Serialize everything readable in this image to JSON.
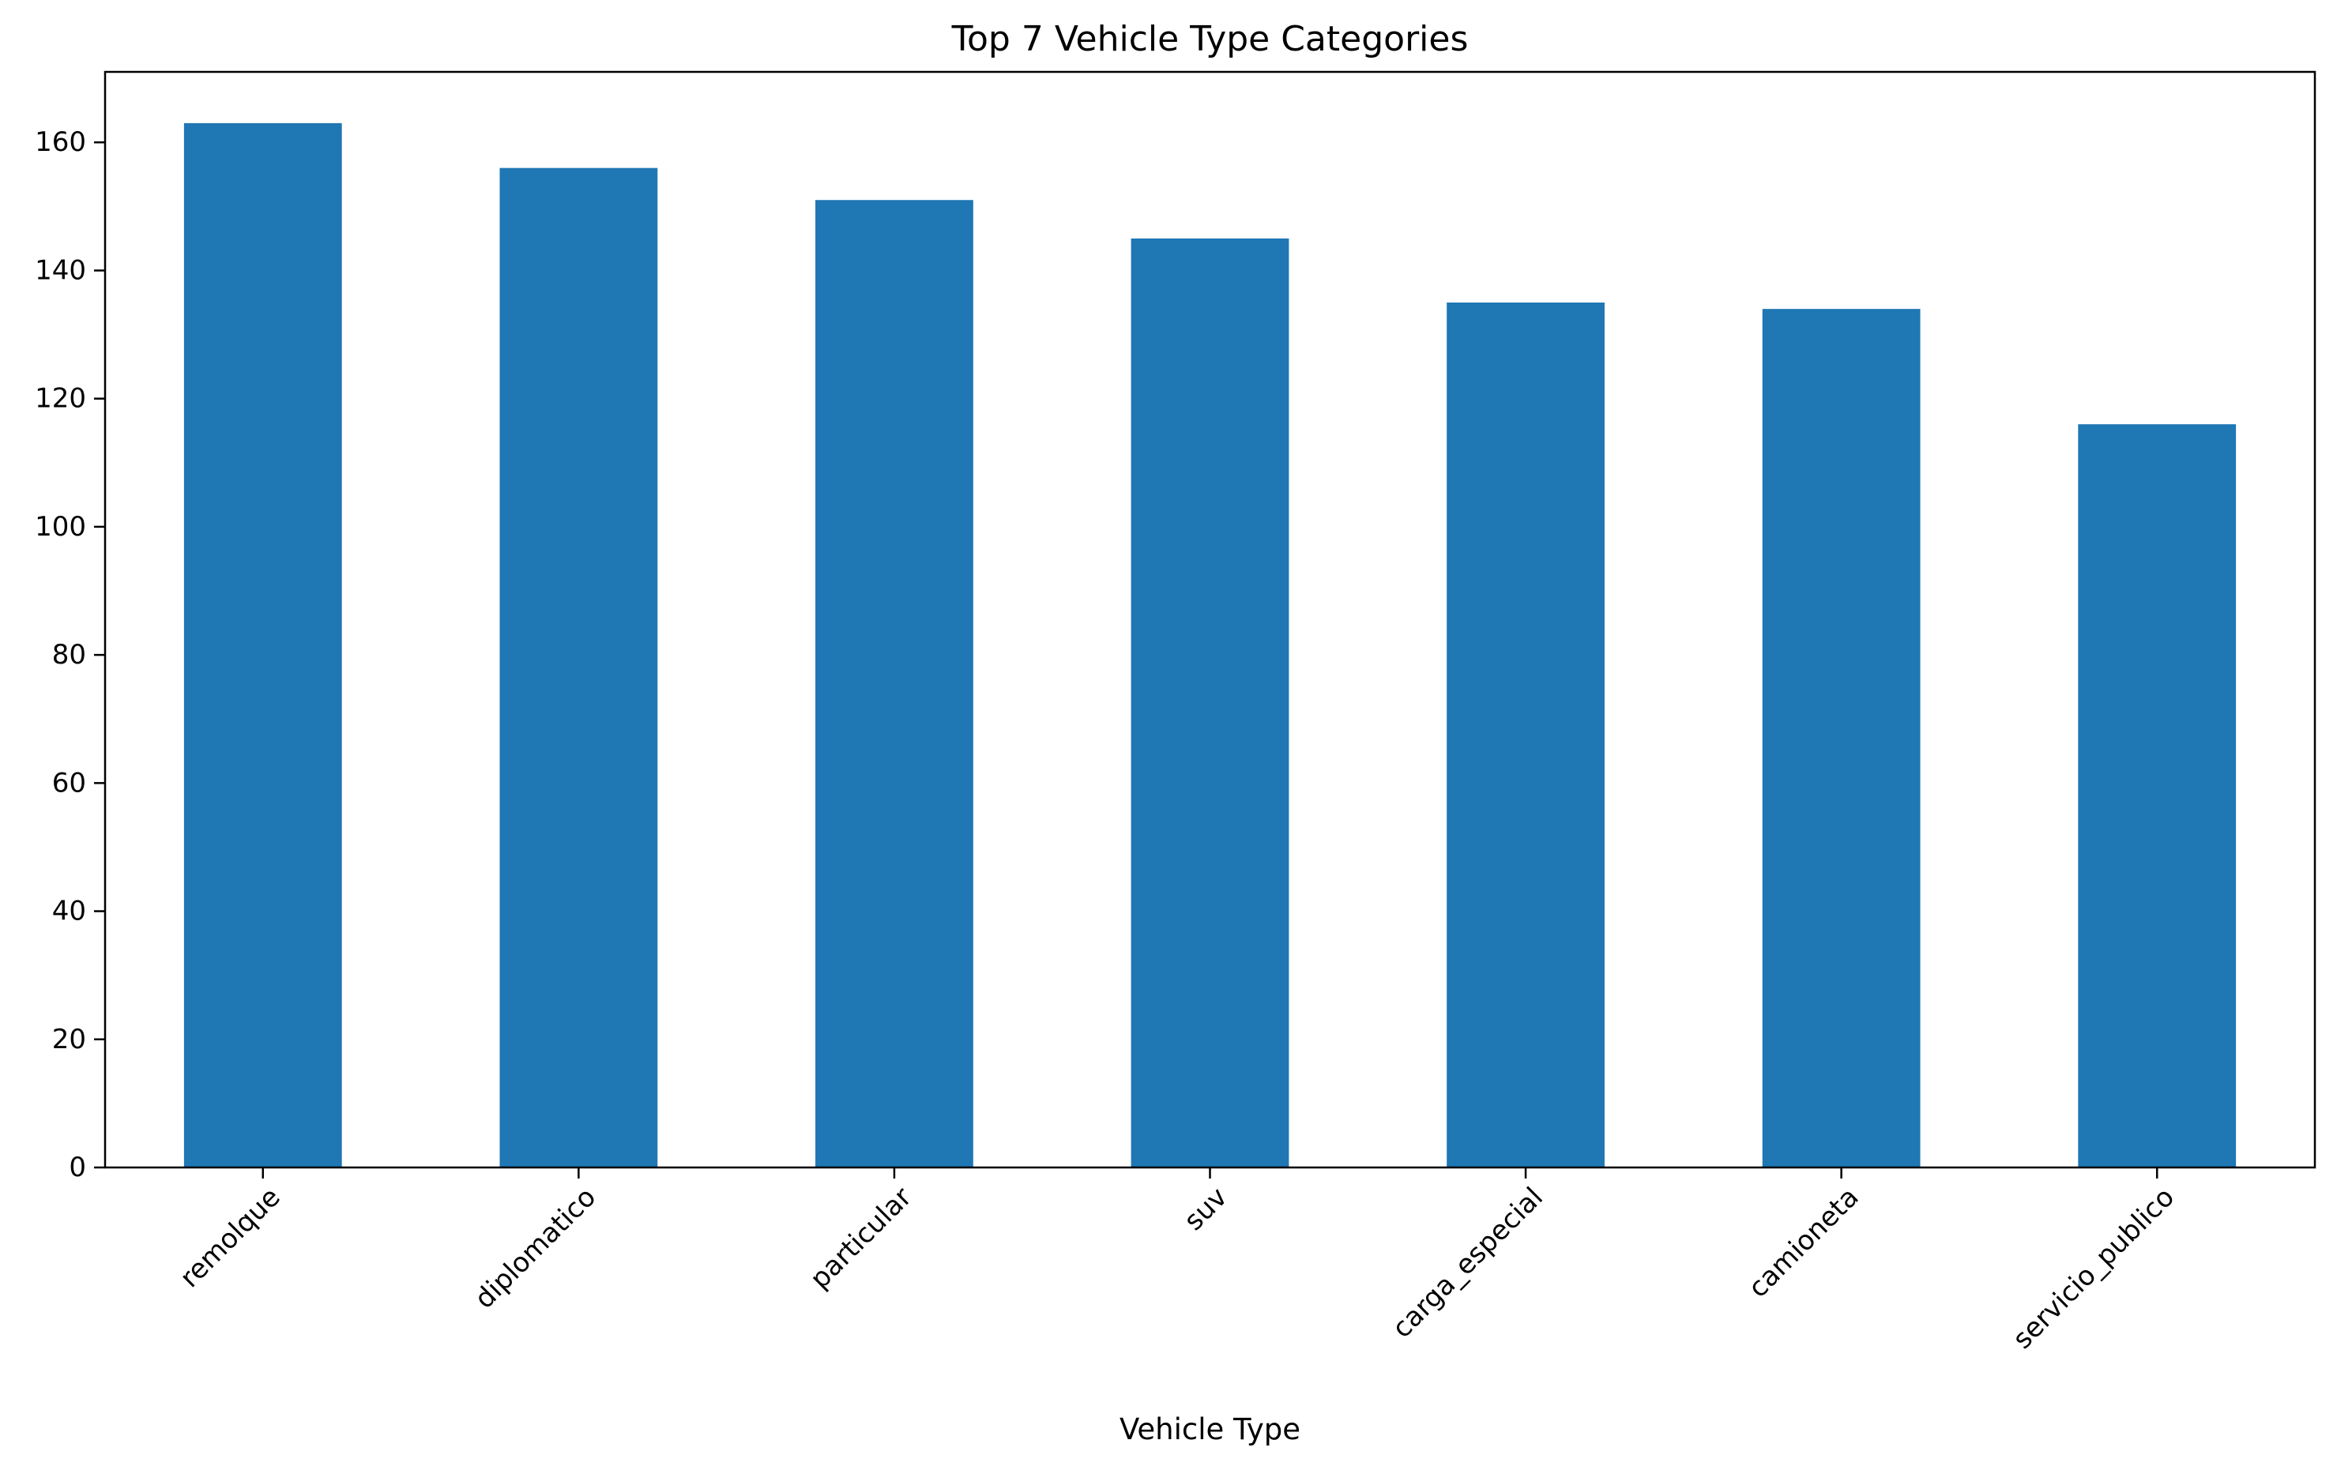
{
  "chart_data": {
    "type": "bar",
    "title": "Top 7 Vehicle Type Categories",
    "xlabel": "Vehicle Type",
    "ylabel": "",
    "categories": [
      "remolque",
      "diplomatico",
      "particular",
      "suv",
      "carga_especial",
      "camioneta",
      "servicio_publico"
    ],
    "values": [
      163,
      156,
      151,
      145,
      135,
      134,
      116
    ],
    "ylim": [
      0,
      171
    ],
    "yticks": [
      0,
      20,
      40,
      60,
      80,
      100,
      120,
      140,
      160
    ],
    "grid": false,
    "legend": "none",
    "bar_color": "#1f77b4"
  }
}
